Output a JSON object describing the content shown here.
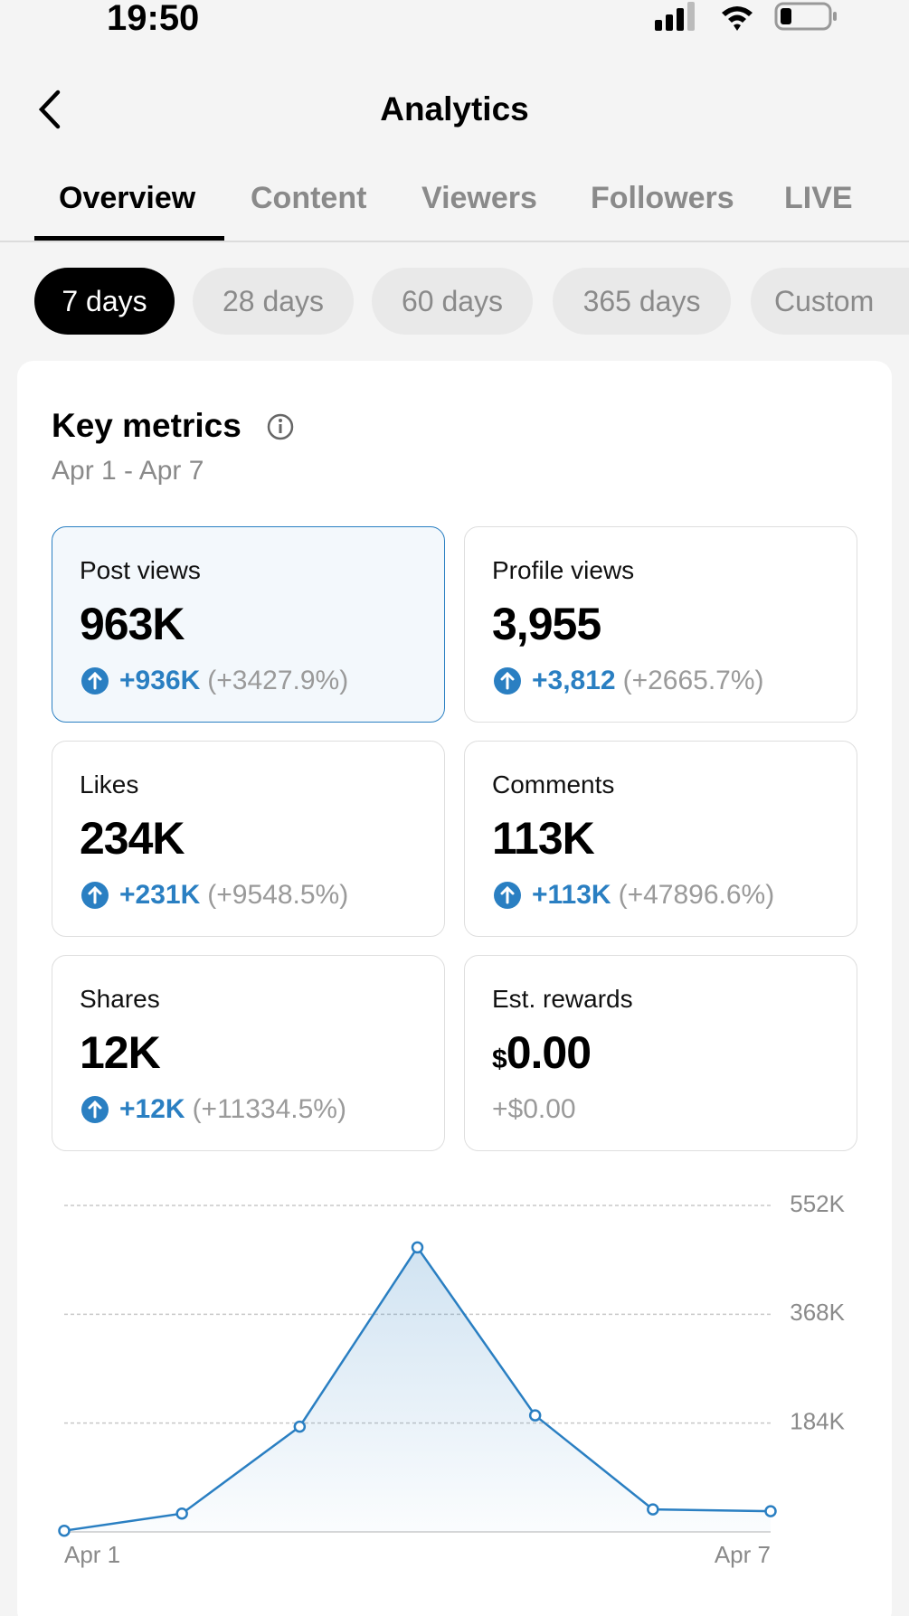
{
  "status_bar": {
    "time": "19:50"
  },
  "header": {
    "title": "Analytics"
  },
  "tabs": [
    "Overview",
    "Content",
    "Viewers",
    "Followers",
    "LIVE"
  ],
  "periods": [
    "7 days",
    "28 days",
    "60 days",
    "365 days",
    "Custom"
  ],
  "key_metrics": {
    "title": "Key metrics",
    "date_range": "Apr 1 - Apr 7",
    "cards": [
      {
        "label": "Post views",
        "value": "963K",
        "change": "+936K",
        "change_pct": "(+3427.9%)"
      },
      {
        "label": "Profile views",
        "value": "3,955",
        "change": "+3,812",
        "change_pct": "(+2665.7%)"
      },
      {
        "label": "Likes",
        "value": "234K",
        "change": "+231K",
        "change_pct": "(+9548.5%)"
      },
      {
        "label": "Comments",
        "value": "113K",
        "change": "+113K",
        "change_pct": "(+47896.6%)"
      },
      {
        "label": "Shares",
        "value": "12K",
        "change": "+12K",
        "change_pct": "(+11334.5%)"
      },
      {
        "label": "Est. rewards",
        "currency": "$",
        "value": "0.00",
        "change": "+$0.00"
      }
    ]
  },
  "chart_data": {
    "type": "line",
    "categories": [
      "Apr 1",
      null,
      null,
      null,
      null,
      null,
      "Apr 7"
    ],
    "values": [
      2000,
      31000,
      178000,
      481000,
      197000,
      38000,
      35000
    ],
    "color": "#2a7fc2",
    "ylim": [
      0,
      552000
    ],
    "yticks": [
      {
        "value": 184000,
        "label": "184K"
      },
      {
        "value": 368000,
        "label": "368K"
      },
      {
        "value": 552000,
        "label": "552K"
      }
    ],
    "grid": true
  }
}
